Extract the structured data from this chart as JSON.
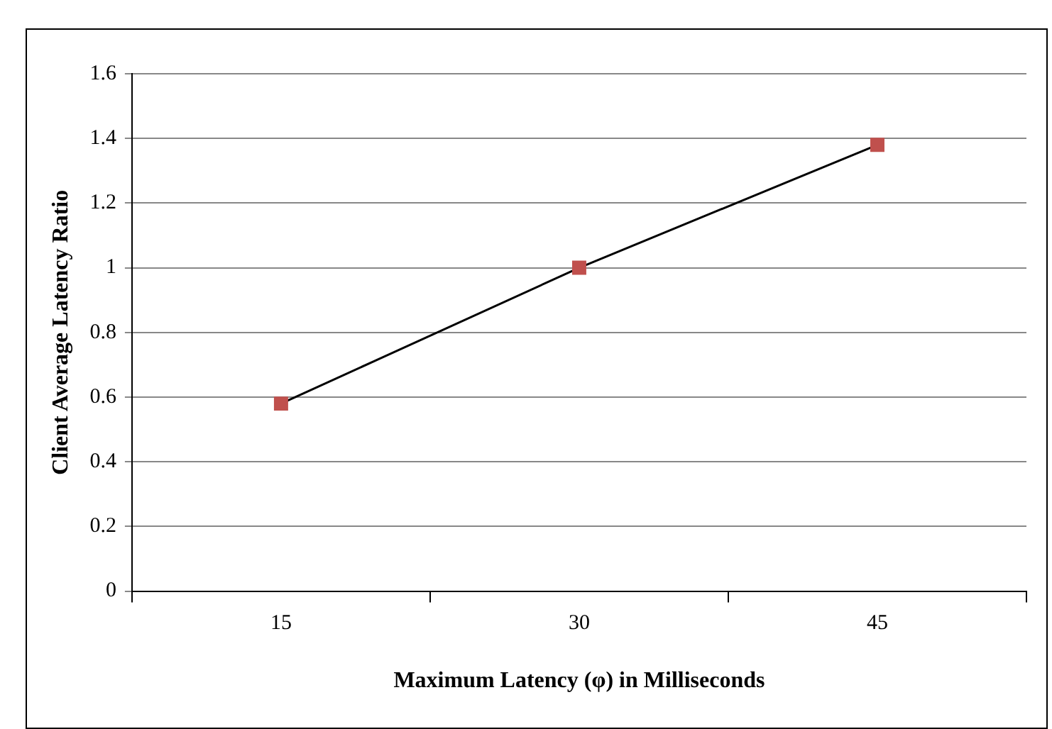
{
  "chart_data": {
    "type": "line",
    "xlabel": "Maximum Latency (φ) in Milliseconds",
    "ylabel": "Client Average Latency Ratio",
    "categories": [
      "15",
      "30",
      "45"
    ],
    "series": [
      {
        "color": "#c0504d",
        "values": [
          0.58,
          1.0,
          1.38
        ]
      }
    ],
    "ylim": [
      0,
      1.6
    ],
    "yticks": [
      0,
      0.2,
      0.4,
      0.6,
      0.8,
      1,
      1.2,
      1.4,
      1.6
    ],
    "grid": "y",
    "legend": false,
    "marker": "square",
    "line_style": "solid"
  }
}
